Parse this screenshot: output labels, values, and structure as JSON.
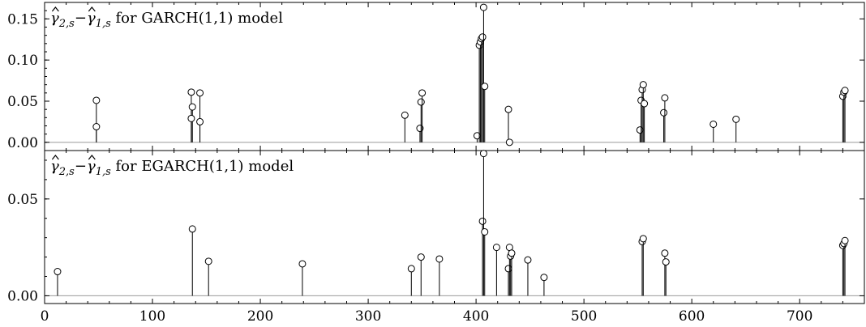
{
  "chart_data": [
    {
      "type": "stem",
      "title": {
        "term_a": "γ",
        "term_a_sub": "2,s",
        "minus": "−",
        "term_b": "γ",
        "term_b_sub": "1,s",
        "rest": " for GARCH(1,1) model"
      },
      "xlim": [
        0,
        760
      ],
      "ylim": [
        -0.01,
        0.17
      ],
      "yticks": [
        0.0,
        0.05,
        0.1,
        0.15
      ],
      "ytick_labels": [
        "0.00",
        "0.05",
        "0.10",
        "0.15"
      ],
      "xticks": [
        0,
        100,
        200,
        300,
        400,
        500,
        600,
        700
      ],
      "baseline": 0,
      "points": [
        {
          "x": 48,
          "y": 0.051
        },
        {
          "x": 48,
          "y": 0.019
        },
        {
          "x": 136,
          "y": 0.061
        },
        {
          "x": 137,
          "y": 0.043
        },
        {
          "x": 136,
          "y": 0.029
        },
        {
          "x": 144,
          "y": 0.06
        },
        {
          "x": 144,
          "y": 0.025
        },
        {
          "x": 334,
          "y": 0.033
        },
        {
          "x": 348,
          "y": 0.017
        },
        {
          "x": 349,
          "y": 0.049
        },
        {
          "x": 350,
          "y": 0.06
        },
        {
          "x": 401,
          "y": 0.008
        },
        {
          "x": 403,
          "y": 0.118
        },
        {
          "x": 404,
          "y": 0.122
        },
        {
          "x": 405,
          "y": 0.126
        },
        {
          "x": 406,
          "y": 0.128
        },
        {
          "x": 407,
          "y": 0.164
        },
        {
          "x": 408,
          "y": 0.068
        },
        {
          "x": 430,
          "y": 0.04
        },
        {
          "x": 431,
          "y": 0.0
        },
        {
          "x": 552,
          "y": 0.015
        },
        {
          "x": 553,
          "y": 0.051
        },
        {
          "x": 554,
          "y": 0.064
        },
        {
          "x": 555,
          "y": 0.07
        },
        {
          "x": 556,
          "y": 0.047
        },
        {
          "x": 574,
          "y": 0.036
        },
        {
          "x": 575,
          "y": 0.054
        },
        {
          "x": 620,
          "y": 0.022
        },
        {
          "x": 641,
          "y": 0.028
        },
        {
          "x": 740,
          "y": 0.056
        },
        {
          "x": 741,
          "y": 0.061
        },
        {
          "x": 742,
          "y": 0.063
        }
      ]
    },
    {
      "type": "stem",
      "title": {
        "term_a": "γ",
        "term_a_sub": "2,s",
        "minus": "−",
        "term_b": "γ",
        "term_b_sub": "1,s",
        "rest": " for EGARCH(1,1) model"
      },
      "xlim": [
        0,
        760
      ],
      "ylim": [
        -0.004,
        0.075
      ],
      "yticks": [
        0.0,
        0.05
      ],
      "ytick_labels": [
        "0.00",
        "0.05"
      ],
      "xticks": [
        0,
        100,
        200,
        300,
        400,
        500,
        600,
        700
      ],
      "xtick_labels": [
        "0",
        "100",
        "200",
        "300",
        "400",
        "500",
        "600",
        "700"
      ],
      "baseline": 0,
      "points": [
        {
          "x": 12,
          "y": 0.0125
        },
        {
          "x": 137,
          "y": 0.0345
        },
        {
          "x": 152,
          "y": 0.0178
        },
        {
          "x": 239,
          "y": 0.0165
        },
        {
          "x": 340,
          "y": 0.014
        },
        {
          "x": 349,
          "y": 0.02
        },
        {
          "x": 366,
          "y": 0.019
        },
        {
          "x": 406,
          "y": 0.0385
        },
        {
          "x": 407,
          "y": 0.0735
        },
        {
          "x": 408,
          "y": 0.033
        },
        {
          "x": 419,
          "y": 0.025
        },
        {
          "x": 430,
          "y": 0.014
        },
        {
          "x": 431,
          "y": 0.025
        },
        {
          "x": 432,
          "y": 0.0205
        },
        {
          "x": 433,
          "y": 0.022
        },
        {
          "x": 448,
          "y": 0.0185
        },
        {
          "x": 463,
          "y": 0.0095
        },
        {
          "x": 554,
          "y": 0.028
        },
        {
          "x": 555,
          "y": 0.0295
        },
        {
          "x": 575,
          "y": 0.022
        },
        {
          "x": 576,
          "y": 0.0175
        },
        {
          "x": 740,
          "y": 0.026
        },
        {
          "x": 741,
          "y": 0.027
        },
        {
          "x": 742,
          "y": 0.0285
        }
      ]
    }
  ]
}
